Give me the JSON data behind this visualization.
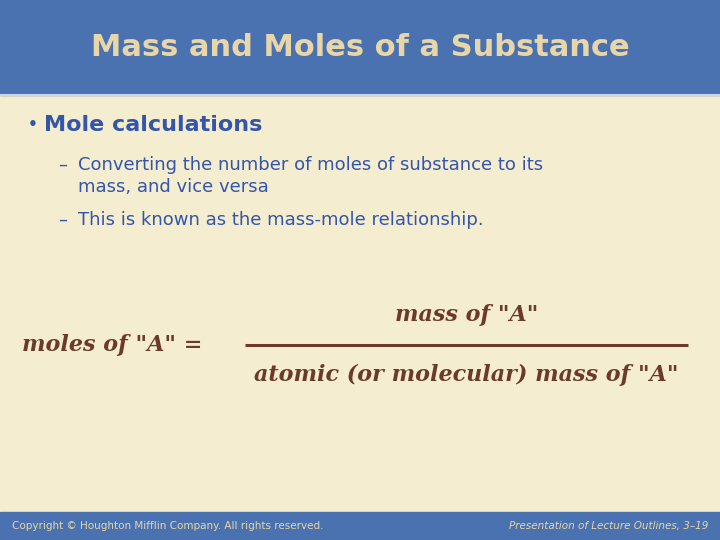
{
  "title": "Mass and Moles of a Substance",
  "title_color": "#E8D5A8",
  "title_bg_color": "#4A72B0",
  "body_bg_color": "#F5EDD0",
  "bullet_head": "Mole calculations",
  "bullet_head_color": "#3355AA",
  "sub_bullet_color": "#3355AA",
  "sub_bullet1_line1": "Converting the number of moles of substance to its",
  "sub_bullet1_line2": "mass, and vice versa",
  "sub_bullet2": "This is known as the mass-mole relationship.",
  "formula_color": "#6B3A2A",
  "formula_lhs": "moles of \"A\" =",
  "formula_numerator": "mass of \"A\"",
  "formula_denominator": "atomic (or molecular) mass of \"A\"",
  "footer_left": "Copyright © Houghton Mifflin Company. All rights reserved.",
  "footer_right": "Presentation of Lecture Outlines, 3–19",
  "footer_text_color": "#E8D5A8",
  "footer_bg_color": "#4A72B0",
  "title_bar_height": 95,
  "footer_bar_height": 28
}
